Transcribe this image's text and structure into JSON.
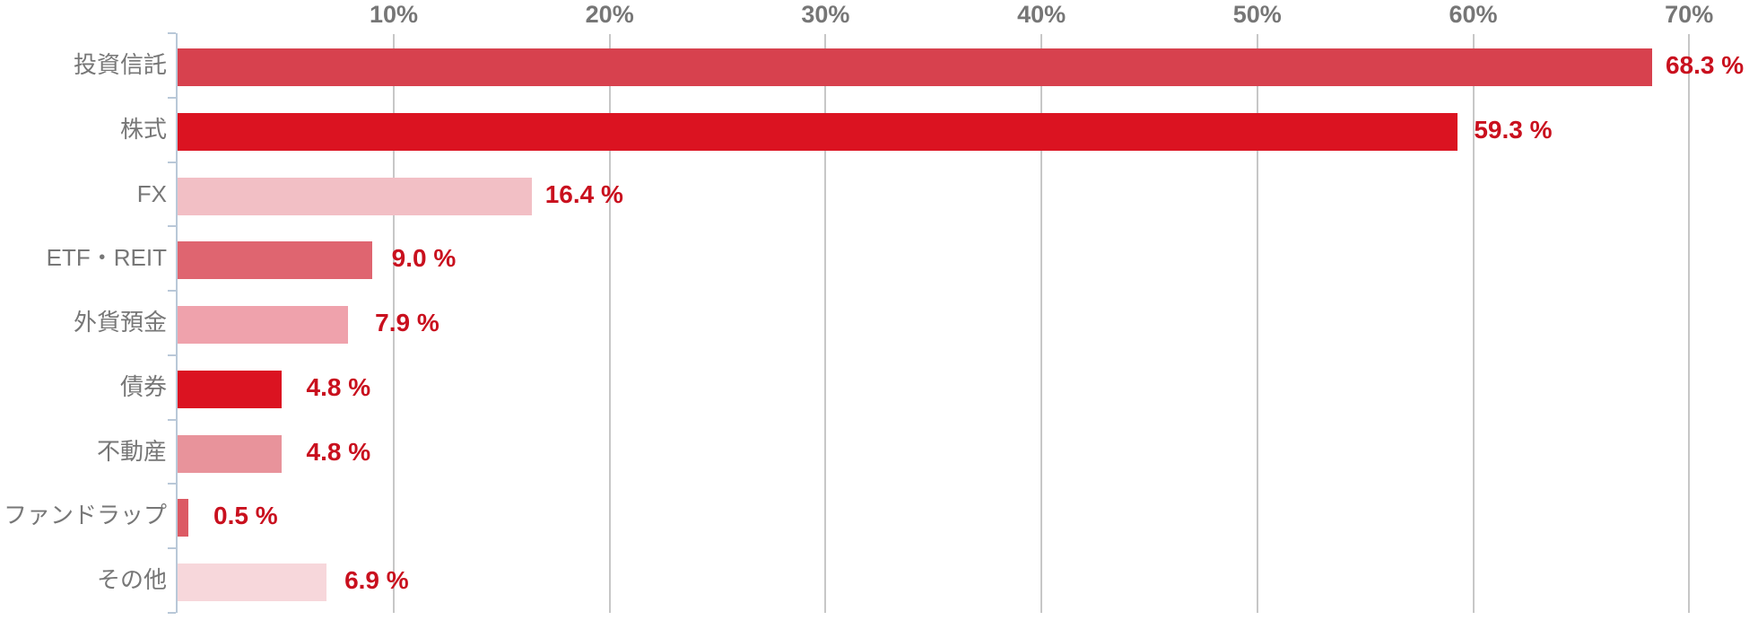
{
  "chart_data": {
    "type": "bar",
    "orientation": "horizontal",
    "title": "",
    "xlabel": "",
    "ylabel": "",
    "categories": [
      "投資信託",
      "株式",
      "FX",
      "ETF・REIT",
      "外貨預金",
      "債券",
      "不動産",
      "ファンドラップ",
      "その他"
    ],
    "values": [
      68.3,
      59.3,
      16.4,
      9.0,
      7.9,
      4.8,
      4.8,
      0.5,
      6.9
    ],
    "value_labels": [
      "68.3 %",
      "59.3 %",
      "16.4 %",
      "9.0 %",
      "7.9 %",
      "4.8 %",
      "4.8 %",
      "0.5 %",
      "6.9 %"
    ],
    "bar_colors": [
      "#d7414e",
      "#db1321",
      "#f2bfc5",
      "#df6570",
      "#efa2ac",
      "#db1321",
      "#e8939b",
      "#dc5a64",
      "#f7d7db"
    ],
    "x_ticks": [
      {
        "label": "10%",
        "value": 10
      },
      {
        "label": "20%",
        "value": 20
      },
      {
        "label": "30%",
        "value": 30
      },
      {
        "label": "40%",
        "value": 40
      },
      {
        "label": "50%",
        "value": 50
      },
      {
        "label": "60%",
        "value": 60
      },
      {
        "label": "70%",
        "value": 70
      }
    ],
    "xlim": [
      0,
      72.8
    ],
    "grid": true,
    "legend": false,
    "tick_labels_position": "top",
    "colors": {
      "value_label": "#c9101e",
      "category_label": "#777777",
      "tick_label": "#767676",
      "gridline": "#c7c7c7",
      "axis_line": "#b9c8d8",
      "background": "#ffffff"
    }
  }
}
